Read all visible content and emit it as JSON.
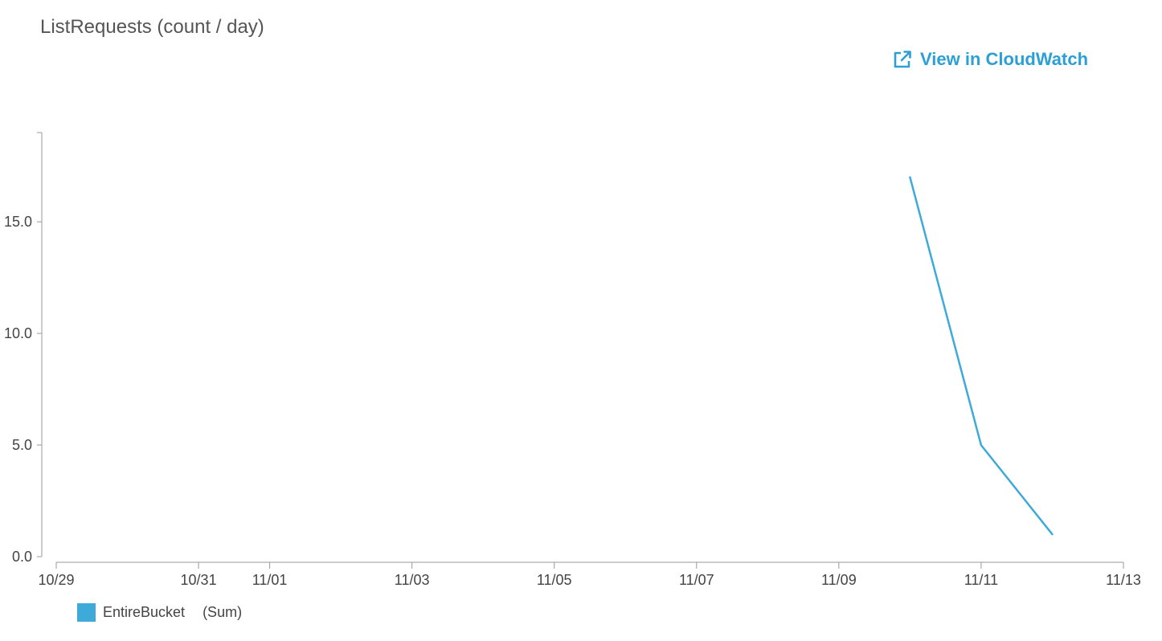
{
  "title": "ListRequests (count / day)",
  "cloudwatch_link": {
    "label": "View in CloudWatch",
    "icon": "external-link-icon",
    "color": "#2b9fd6"
  },
  "legend": {
    "series_name": "EntireBucket",
    "statistic": "(Sum)"
  },
  "chart_data": {
    "type": "line",
    "title": "ListRequests (count / day)",
    "xlabel": "",
    "ylabel": "",
    "x_ticks": [
      "10/29",
      "10/31",
      "11/01",
      "11/03",
      "11/05",
      "11/07",
      "11/09",
      "11/11",
      "11/13"
    ],
    "y_ticks": [
      "0.0",
      "5.0",
      "10.0",
      "15.0"
    ],
    "ylim": [
      0,
      19
    ],
    "xlim": [
      "10/29",
      "11/13"
    ],
    "grid": false,
    "legend_position": "bottom-left",
    "series": [
      {
        "name": "EntireBucket",
        "stat": "Sum",
        "color": "#3eaad9",
        "x": [
          "11/10",
          "11/11",
          "11/12"
        ],
        "values": [
          17,
          5,
          1
        ]
      }
    ]
  }
}
